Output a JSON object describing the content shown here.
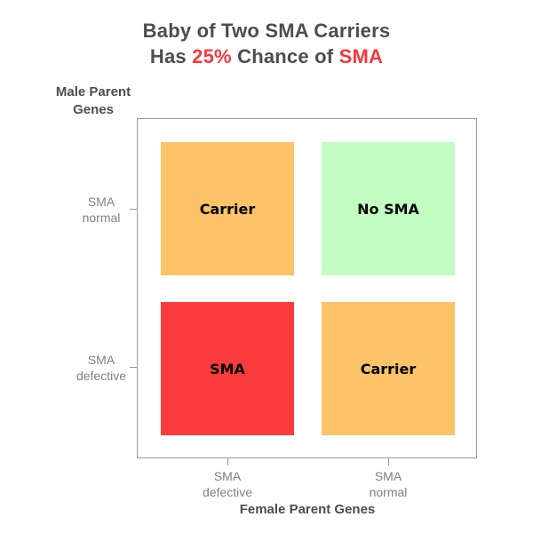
{
  "title": {
    "line1": "Baby of Two SMA Carriers",
    "line2_part1": "Has ",
    "line2_pct": "25%",
    "line2_part2": " Chance of ",
    "line2_sma": "SMA"
  },
  "axes": {
    "y": {
      "title_line1": "Male Parent",
      "title_line2": "Genes",
      "ticks": [
        {
          "line1": "SMA",
          "line2": "normal"
        },
        {
          "line1": "SMA",
          "line2": "defective"
        }
      ]
    },
    "x": {
      "title": "Female Parent Genes",
      "ticks": [
        {
          "line1": "SMA",
          "line2": "defective"
        },
        {
          "line1": "SMA",
          "line2": "normal"
        }
      ]
    }
  },
  "quadrants": [
    {
      "id": "top-left",
      "label": "Carrier",
      "color": "#FDC368"
    },
    {
      "id": "top-right",
      "label": "No SMA",
      "color": "#C2FDC2"
    },
    {
      "id": "bottom-left",
      "label": "SMA",
      "color": "#FB3B3B"
    },
    {
      "id": "bottom-right",
      "label": "Carrier",
      "color": "#FDC368"
    }
  ],
  "colors": {
    "title_text": "#4D4D4D",
    "accent_red": "#F8383C",
    "axis_title_text": "#4D4D4D",
    "tick_text": "#808080",
    "axis_border": "#999999",
    "cell_label": "#000000"
  },
  "chart_data": {
    "type": "heatmap",
    "title": "Baby of Two SMA Carriers Has 25% Chance of SMA",
    "title_highlights": [
      "25%",
      "SMA"
    ],
    "xlabel": "Female Parent Genes",
    "ylabel": "Male Parent Genes",
    "x_categories": [
      "SMA defective",
      "SMA normal"
    ],
    "y_categories_top_to_bottom": [
      "SMA normal",
      "SMA defective"
    ],
    "cells": [
      {
        "x": "SMA defective",
        "y": "SMA normal",
        "label": "Carrier",
        "color": "#FDC368"
      },
      {
        "x": "SMA normal",
        "y": "SMA normal",
        "label": "No SMA",
        "color": "#C2FDC2"
      },
      {
        "x": "SMA defective",
        "y": "SMA defective",
        "label": "SMA",
        "color": "#FB3B3B"
      },
      {
        "x": "SMA normal",
        "y": "SMA defective",
        "label": "Carrier",
        "color": "#FDC368"
      }
    ],
    "legend": "none",
    "grid": false
  }
}
